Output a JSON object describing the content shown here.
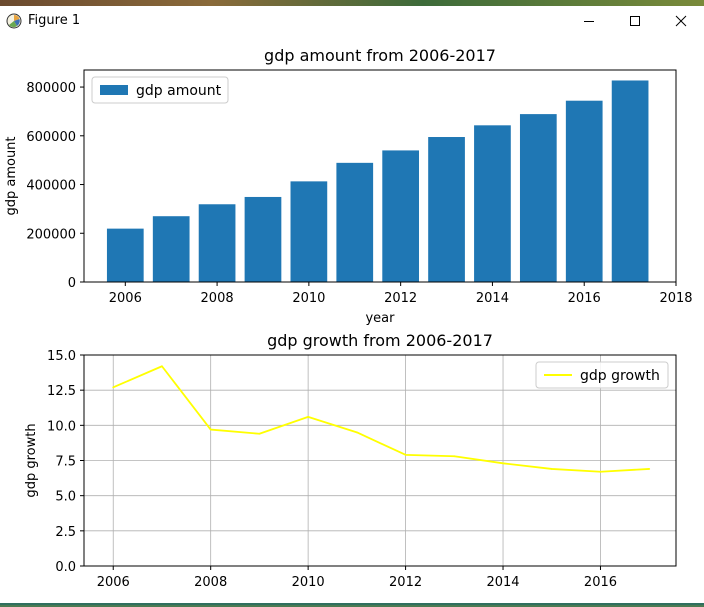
{
  "window": {
    "title": "Figure 1",
    "minimize_icon": "minimize-icon",
    "maximize_icon": "maximize-icon",
    "close_icon": "close-icon"
  },
  "chart_data": [
    {
      "type": "bar",
      "title": "gdp amount from 2006-2017",
      "xlabel": "year",
      "ylabel": "gdp amount",
      "x": [
        2006,
        2007,
        2008,
        2009,
        2010,
        2011,
        2012,
        2013,
        2014,
        2015,
        2016,
        2017
      ],
      "series": [
        {
          "name": "gdp amount",
          "color": "#1f77b4",
          "values": [
            219000,
            270000,
            319000,
            349000,
            413000,
            489000,
            540000,
            595000,
            643000,
            689000,
            744000,
            827000
          ]
        }
      ],
      "xlim": [
        2005.1,
        2018.0
      ],
      "ylim": [
        0,
        870000
      ],
      "xticks": [
        2006,
        2008,
        2010,
        2012,
        2014,
        2016,
        2018
      ],
      "yticks": [
        0,
        200000,
        400000,
        600000,
        800000
      ],
      "ytick_labels": [
        "0",
        "200000",
        "400000",
        "600000",
        "800000"
      ],
      "legend_placement": "upper-left",
      "grid": false
    },
    {
      "type": "line",
      "title": "gdp growth from 2006-2017",
      "xlabel": "",
      "ylabel": "gdp growth",
      "x": [
        2006,
        2007,
        2008,
        2009,
        2010,
        2011,
        2012,
        2013,
        2014,
        2015,
        2016,
        2017
      ],
      "series": [
        {
          "name": "gdp growth",
          "color": "#ffff00",
          "values": [
            12.7,
            14.2,
            9.7,
            9.4,
            10.6,
            9.5,
            7.9,
            7.8,
            7.3,
            6.9,
            6.7,
            6.9
          ]
        }
      ],
      "xlim": [
        2005.4,
        2017.55
      ],
      "ylim": [
        0,
        15
      ],
      "xticks": [
        2006,
        2008,
        2010,
        2012,
        2014,
        2016
      ],
      "yticks": [
        0.0,
        2.5,
        5.0,
        7.5,
        10.0,
        12.5,
        15.0
      ],
      "ytick_labels": [
        "0.0",
        "2.5",
        "5.0",
        "7.5",
        "10.0",
        "12.5",
        "15.0"
      ],
      "legend_placement": "upper-right",
      "grid": true
    }
  ]
}
